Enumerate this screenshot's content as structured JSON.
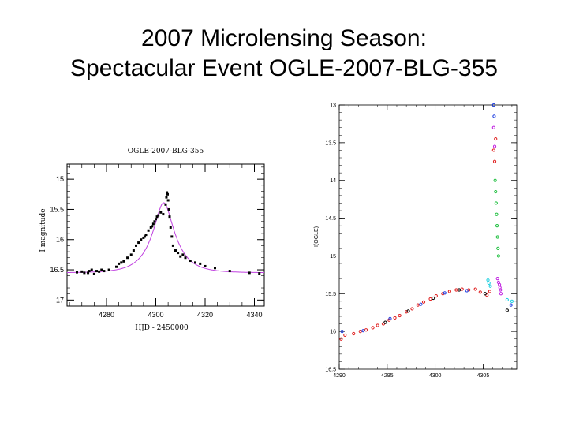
{
  "slide": {
    "title_line1": "2007 Microlensing Season:",
    "title_line2": "Spectacular Event OGLE-2007-BLG-355"
  },
  "chart_data": [
    {
      "type": "scatter",
      "title": "OGLE-2007-BLG-355",
      "xlabel": "HJD - 2450000",
      "ylabel": "I magnitude",
      "xlim": [
        4264,
        4344
      ],
      "ylim": [
        17.1,
        14.75
      ],
      "y_inverted": true,
      "xticks": [
        4280,
        4300,
        4320,
        4340
      ],
      "yticks": [
        15,
        15.5,
        16,
        16.5,
        17
      ],
      "ytick_labels": [
        "15",
        "15.5",
        "16",
        "16.5",
        "17"
      ],
      "model_color": "#c040e0",
      "point_color": "#000000",
      "model_curve": {
        "t0": 4303.2,
        "tE": 9.0,
        "u0": 0.36,
        "baseline": 16.55
      },
      "points": [
        {
          "x": 4268,
          "y": 16.54
        },
        {
          "x": 4270,
          "y": 16.53
        },
        {
          "x": 4271,
          "y": 16.55
        },
        {
          "x": 4272.5,
          "y": 16.55
        },
        {
          "x": 4273,
          "y": 16.52
        },
        {
          "x": 4274,
          "y": 16.5
        },
        {
          "x": 4275,
          "y": 16.57
        },
        {
          "x": 4276,
          "y": 16.52
        },
        {
          "x": 4277,
          "y": 16.53
        },
        {
          "x": 4278,
          "y": 16.5
        },
        {
          "x": 4279,
          "y": 16.52
        },
        {
          "x": 4281,
          "y": 16.5
        },
        {
          "x": 4284,
          "y": 16.45
        },
        {
          "x": 4285,
          "y": 16.4
        },
        {
          "x": 4286,
          "y": 16.38
        },
        {
          "x": 4287,
          "y": 16.36
        },
        {
          "x": 4288.5,
          "y": 16.3
        },
        {
          "x": 4290,
          "y": 16.25
        },
        {
          "x": 4291,
          "y": 16.18
        },
        {
          "x": 4292,
          "y": 16.1
        },
        {
          "x": 4293,
          "y": 16.05
        },
        {
          "x": 4294,
          "y": 16.0
        },
        {
          "x": 4295,
          "y": 15.97
        },
        {
          "x": 4295.5,
          "y": 15.95
        },
        {
          "x": 4296,
          "y": 15.92
        },
        {
          "x": 4297,
          "y": 15.85
        },
        {
          "x": 4298,
          "y": 15.8
        },
        {
          "x": 4298.5,
          "y": 15.78
        },
        {
          "x": 4299,
          "y": 15.74
        },
        {
          "x": 4299.5,
          "y": 15.7
        },
        {
          "x": 4300,
          "y": 15.66
        },
        {
          "x": 4300.5,
          "y": 15.62
        },
        {
          "x": 4301,
          "y": 15.6
        },
        {
          "x": 4302,
          "y": 15.55
        },
        {
          "x": 4303,
          "y": 15.58
        },
        {
          "x": 4304,
          "y": 15.42
        },
        {
          "x": 4304.3,
          "y": 15.3
        },
        {
          "x": 4304.5,
          "y": 15.22
        },
        {
          "x": 4304.8,
          "y": 15.25
        },
        {
          "x": 4305,
          "y": 15.35
        },
        {
          "x": 4305.3,
          "y": 15.5
        },
        {
          "x": 4305.6,
          "y": 15.62
        },
        {
          "x": 4306,
          "y": 15.8
        },
        {
          "x": 4306.5,
          "y": 15.95
        },
        {
          "x": 4307,
          "y": 16.1
        },
        {
          "x": 4308,
          "y": 16.18
        },
        {
          "x": 4309,
          "y": 16.22
        },
        {
          "x": 4310,
          "y": 16.28
        },
        {
          "x": 4311,
          "y": 16.25
        },
        {
          "x": 4312,
          "y": 16.3
        },
        {
          "x": 4314,
          "y": 16.35
        },
        {
          "x": 4316,
          "y": 16.38
        },
        {
          "x": 4318,
          "y": 16.4
        },
        {
          "x": 4320,
          "y": 16.44
        },
        {
          "x": 4324,
          "y": 16.47
        },
        {
          "x": 4330,
          "y": 16.52
        },
        {
          "x": 4338,
          "y": 16.55
        },
        {
          "x": 4342,
          "y": 16.56
        }
      ]
    },
    {
      "type": "scatter",
      "title": "",
      "xlabel": "",
      "ylabel": "I(OGLE)",
      "xlim": [
        4290,
        4308.5
      ],
      "ylim": [
        16.5,
        13
      ],
      "y_inverted": true,
      "xticks": [
        4290,
        4295,
        4300,
        4305
      ],
      "yticks": [
        13,
        13.5,
        14,
        14.5,
        15,
        15.5,
        16,
        16.5
      ],
      "ytick_labels": [
        "13",
        "13.5",
        "14",
        "14.5",
        "15",
        "15.5",
        "16",
        "16.5"
      ],
      "series": [
        {
          "name": "red",
          "color": "#e02020",
          "points": [
            {
              "x": 4290.2,
              "y": 16.1
            },
            {
              "x": 4290.6,
              "y": 16.05
            },
            {
              "x": 4291.5,
              "y": 16.03
            },
            {
              "x": 4292.2,
              "y": 16.0
            },
            {
              "x": 4292.8,
              "y": 15.98
            },
            {
              "x": 4293.5,
              "y": 15.95
            },
            {
              "x": 4294,
              "y": 15.92
            },
            {
              "x": 4294.6,
              "y": 15.9
            },
            {
              "x": 4295.2,
              "y": 15.85
            },
            {
              "x": 4295.8,
              "y": 15.82
            },
            {
              "x": 4296.3,
              "y": 15.79
            },
            {
              "x": 4297,
              "y": 15.74
            },
            {
              "x": 4297.6,
              "y": 15.7
            },
            {
              "x": 4298.2,
              "y": 15.65
            },
            {
              "x": 4298.8,
              "y": 15.61
            },
            {
              "x": 4299.5,
              "y": 15.57
            },
            {
              "x": 4300.1,
              "y": 15.53
            },
            {
              "x": 4300.8,
              "y": 15.5
            },
            {
              "x": 4301.5,
              "y": 15.47
            },
            {
              "x": 4302.2,
              "y": 15.45
            },
            {
              "x": 4302.8,
              "y": 15.44
            },
            {
              "x": 4303.5,
              "y": 15.45
            },
            {
              "x": 4304.2,
              "y": 15.44
            },
            {
              "x": 4304.7,
              "y": 15.48
            },
            {
              "x": 4305.4,
              "y": 15.52
            },
            {
              "x": 4305.7,
              "y": 15.47
            },
            {
              "x": 4306.1,
              "y": 13.6
            },
            {
              "x": 4306.2,
              "y": 13.75
            },
            {
              "x": 4306.3,
              "y": 13.45
            }
          ]
        },
        {
          "name": "green",
          "color": "#20c040",
          "points": [
            {
              "x": 4306.25,
              "y": 14.0
            },
            {
              "x": 4306.3,
              "y": 14.15
            },
            {
              "x": 4306.35,
              "y": 14.3
            },
            {
              "x": 4306.4,
              "y": 14.45
            },
            {
              "x": 4306.45,
              "y": 14.6
            },
            {
              "x": 4306.5,
              "y": 14.75
            },
            {
              "x": 4306.55,
              "y": 14.9
            },
            {
              "x": 4306.6,
              "y": 15.0
            }
          ]
        },
        {
          "name": "blue",
          "color": "#2040e0",
          "points": [
            {
              "x": 4290.3,
              "y": 16.0
            },
            {
              "x": 4292.5,
              "y": 15.99
            },
            {
              "x": 4295.3,
              "y": 15.83
            },
            {
              "x": 4298.5,
              "y": 15.64
            },
            {
              "x": 4301,
              "y": 15.49
            },
            {
              "x": 4303.3,
              "y": 15.46
            },
            {
              "x": 4306.1,
              "y": 13.0
            },
            {
              "x": 4306.15,
              "y": 13.15
            },
            {
              "x": 4307.9,
              "y": 15.65
            }
          ]
        },
        {
          "name": "magenta",
          "color": "#c020e0",
          "points": [
            {
              "x": 4306.1,
              "y": 13.3
            },
            {
              "x": 4306.2,
              "y": 13.55
            },
            {
              "x": 4306.5,
              "y": 15.3
            },
            {
              "x": 4306.6,
              "y": 15.35
            },
            {
              "x": 4306.7,
              "y": 15.38
            },
            {
              "x": 4306.75,
              "y": 15.42
            },
            {
              "x": 4306.8,
              "y": 15.45
            },
            {
              "x": 4306.85,
              "y": 15.5
            }
          ]
        },
        {
          "name": "cyan",
          "color": "#20d0e0",
          "points": [
            {
              "x": 4305.5,
              "y": 15.32
            },
            {
              "x": 4305.6,
              "y": 15.36
            },
            {
              "x": 4305.75,
              "y": 15.4
            },
            {
              "x": 4307.5,
              "y": 15.58
            },
            {
              "x": 4308.0,
              "y": 15.6
            }
          ]
        },
        {
          "name": "black",
          "color": "#000000",
          "points": [
            {
              "x": 4294.8,
              "y": 15.88
            },
            {
              "x": 4297.2,
              "y": 15.73
            },
            {
              "x": 4299.8,
              "y": 15.56
            },
            {
              "x": 4302.5,
              "y": 15.45
            },
            {
              "x": 4305.2,
              "y": 15.5
            },
            {
              "x": 4307.5,
              "y": 15.72
            }
          ]
        }
      ]
    }
  ]
}
